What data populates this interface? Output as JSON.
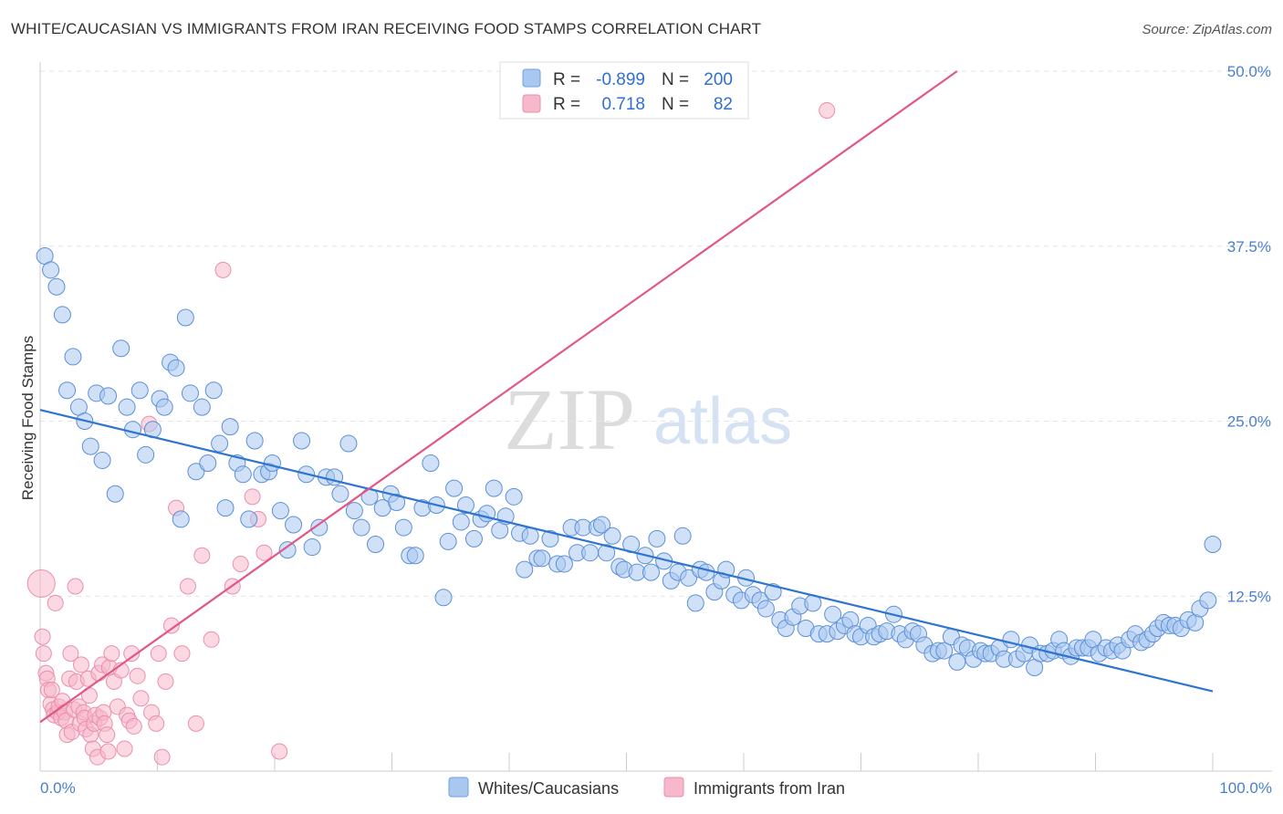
{
  "title": "WHITE/CAUCASIAN VS IMMIGRANTS FROM IRAN RECEIVING FOOD STAMPS CORRELATION CHART",
  "source": "Source: ZipAtlas.com",
  "watermark": {
    "zip": "ZIP",
    "atlas": "atlas"
  },
  "legend": {
    "rows": [
      {
        "r_label": "R =",
        "r_value": "-0.899",
        "n_label": "N =",
        "n_value": "200",
        "color": "#a9c8f0",
        "stroke": "#6f9fe0"
      },
      {
        "r_label": "R =",
        "r_value": "0.718",
        "n_label": "N =",
        "n_value": "82",
        "color": "#f7b8cb",
        "stroke": "#ea8fae"
      }
    ]
  },
  "chart_data": {
    "type": "scatter",
    "ylabel": "Receiving Food Stamps",
    "xlim": [
      0,
      100
    ],
    "ylim": [
      0,
      50
    ],
    "x_tick_labels": [
      "0.0%",
      "100.0%"
    ],
    "y_ticks": [
      12.5,
      25.0,
      37.5,
      50.0
    ],
    "y_tick_labels": [
      "12.5%",
      "25.0%",
      "37.5%",
      "50.0%"
    ],
    "grid": true,
    "series": [
      {
        "name": "Whites/Caucasians",
        "color": "#a9c8f0",
        "stroke": "#5b8fd8",
        "trend": {
          "x": [
            0,
            100
          ],
          "y": [
            25.8,
            5.7
          ],
          "color": "#2e74d0"
        },
        "points": [
          [
            0.4,
            36.8
          ],
          [
            0.9,
            35.8
          ],
          [
            1.4,
            34.6
          ],
          [
            1.9,
            32.6
          ],
          [
            2.3,
            27.2
          ],
          [
            2.8,
            29.6
          ],
          [
            3.3,
            26.0
          ],
          [
            3.8,
            25.0
          ],
          [
            4.3,
            23.2
          ],
          [
            4.8,
            27.0
          ],
          [
            5.3,
            22.2
          ],
          [
            5.8,
            26.8
          ],
          [
            6.4,
            19.8
          ],
          [
            6.9,
            30.2
          ],
          [
            7.4,
            26.0
          ],
          [
            7.9,
            24.4
          ],
          [
            8.5,
            27.2
          ],
          [
            9.0,
            22.6
          ],
          [
            9.6,
            24.4
          ],
          [
            10.2,
            26.6
          ],
          [
            10.6,
            26.0
          ],
          [
            11.1,
            29.2
          ],
          [
            11.6,
            28.8
          ],
          [
            12.0,
            18.0
          ],
          [
            12.4,
            32.4
          ],
          [
            12.8,
            27.0
          ],
          [
            13.3,
            21.4
          ],
          [
            13.8,
            26.0
          ],
          [
            14.3,
            22.0
          ],
          [
            14.8,
            27.2
          ],
          [
            15.3,
            23.4
          ],
          [
            15.8,
            18.8
          ],
          [
            16.2,
            24.6
          ],
          [
            16.8,
            22.0
          ],
          [
            17.3,
            21.2
          ],
          [
            17.8,
            18.0
          ],
          [
            18.3,
            23.6
          ],
          [
            18.9,
            21.2
          ],
          [
            19.5,
            21.4
          ],
          [
            19.8,
            22.0
          ],
          [
            20.5,
            18.6
          ],
          [
            21.1,
            15.8
          ],
          [
            21.6,
            17.6
          ],
          [
            22.3,
            23.6
          ],
          [
            22.7,
            21.2
          ],
          [
            23.2,
            16.0
          ],
          [
            23.8,
            17.4
          ],
          [
            24.4,
            21.0
          ],
          [
            25.1,
            21.0
          ],
          [
            25.6,
            19.8
          ],
          [
            26.3,
            23.4
          ],
          [
            26.8,
            18.6
          ],
          [
            27.4,
            17.4
          ],
          [
            28.1,
            19.6
          ],
          [
            28.6,
            16.2
          ],
          [
            29.2,
            18.8
          ],
          [
            29.9,
            19.8
          ],
          [
            30.4,
            19.2
          ],
          [
            31.0,
            17.4
          ],
          [
            31.5,
            15.4
          ],
          [
            32.0,
            15.4
          ],
          [
            32.6,
            18.8
          ],
          [
            33.3,
            22.0
          ],
          [
            33.8,
            19.0
          ],
          [
            34.4,
            12.4
          ],
          [
            34.8,
            16.4
          ],
          [
            35.3,
            20.2
          ],
          [
            35.9,
            17.8
          ],
          [
            36.3,
            19.0
          ],
          [
            37.0,
            16.6
          ],
          [
            37.6,
            18.0
          ],
          [
            38.1,
            18.4
          ],
          [
            38.7,
            20.2
          ],
          [
            39.2,
            17.2
          ],
          [
            39.7,
            18.2
          ],
          [
            40.4,
            19.6
          ],
          [
            40.9,
            17.0
          ],
          [
            41.3,
            14.4
          ],
          [
            41.8,
            16.8
          ],
          [
            42.4,
            15.2
          ],
          [
            42.8,
            15.2
          ],
          [
            43.5,
            16.6
          ],
          [
            44.1,
            14.8
          ],
          [
            44.7,
            14.8
          ],
          [
            45.3,
            17.4
          ],
          [
            45.8,
            15.6
          ],
          [
            46.3,
            17.4
          ],
          [
            46.9,
            15.6
          ],
          [
            47.5,
            17.4
          ],
          [
            47.9,
            17.6
          ],
          [
            48.3,
            15.6
          ],
          [
            48.8,
            16.8
          ],
          [
            49.4,
            14.6
          ],
          [
            49.8,
            14.4
          ],
          [
            50.4,
            16.2
          ],
          [
            50.9,
            14.2
          ],
          [
            51.6,
            15.4
          ],
          [
            52.1,
            14.2
          ],
          [
            52.6,
            16.6
          ],
          [
            53.2,
            15.0
          ],
          [
            53.8,
            13.6
          ],
          [
            54.4,
            14.2
          ],
          [
            54.8,
            16.8
          ],
          [
            55.3,
            13.8
          ],
          [
            55.9,
            12.0
          ],
          [
            56.3,
            14.4
          ],
          [
            56.8,
            14.2
          ],
          [
            57.5,
            12.8
          ],
          [
            58.1,
            13.6
          ],
          [
            58.5,
            14.4
          ],
          [
            59.2,
            12.6
          ],
          [
            59.8,
            12.2
          ],
          [
            60.2,
            13.8
          ],
          [
            60.8,
            12.6
          ],
          [
            61.4,
            12.2
          ],
          [
            61.9,
            11.6
          ],
          [
            62.5,
            12.8
          ],
          [
            63.1,
            10.8
          ],
          [
            63.6,
            10.2
          ],
          [
            64.2,
            11.0
          ],
          [
            64.8,
            11.8
          ],
          [
            65.3,
            10.2
          ],
          [
            65.9,
            12.0
          ],
          [
            66.4,
            9.8
          ],
          [
            67.1,
            9.8
          ],
          [
            67.6,
            11.2
          ],
          [
            68.0,
            10.0
          ],
          [
            68.6,
            10.4
          ],
          [
            69.1,
            10.8
          ],
          [
            69.5,
            9.8
          ],
          [
            70.0,
            9.6
          ],
          [
            70.6,
            10.4
          ],
          [
            71.1,
            9.6
          ],
          [
            71.6,
            9.8
          ],
          [
            72.2,
            10.0
          ],
          [
            72.8,
            11.2
          ],
          [
            73.3,
            9.8
          ],
          [
            73.8,
            9.4
          ],
          [
            74.4,
            10.0
          ],
          [
            74.9,
            9.8
          ],
          [
            75.4,
            9.0
          ],
          [
            76.1,
            8.4
          ],
          [
            76.6,
            8.6
          ],
          [
            77.1,
            8.6
          ],
          [
            77.7,
            9.6
          ],
          [
            78.2,
            7.8
          ],
          [
            78.6,
            9.0
          ],
          [
            79.1,
            8.8
          ],
          [
            79.6,
            8.0
          ],
          [
            80.2,
            8.6
          ],
          [
            80.6,
            8.4
          ],
          [
            81.1,
            8.4
          ],
          [
            81.8,
            8.8
          ],
          [
            82.2,
            8.0
          ],
          [
            82.8,
            9.4
          ],
          [
            83.3,
            8.0
          ],
          [
            83.9,
            8.4
          ],
          [
            84.4,
            9.0
          ],
          [
            84.8,
            7.4
          ],
          [
            85.3,
            8.4
          ],
          [
            85.9,
            8.4
          ],
          [
            86.4,
            8.6
          ],
          [
            86.9,
            9.4
          ],
          [
            87.3,
            8.6
          ],
          [
            87.9,
            8.2
          ],
          [
            88.4,
            8.8
          ],
          [
            88.9,
            8.8
          ],
          [
            89.4,
            8.8
          ],
          [
            89.8,
            9.4
          ],
          [
            90.3,
            8.4
          ],
          [
            90.9,
            8.8
          ],
          [
            91.4,
            8.6
          ],
          [
            91.9,
            9.0
          ],
          [
            92.3,
            8.6
          ],
          [
            92.9,
            9.4
          ],
          [
            93.4,
            9.8
          ],
          [
            93.9,
            9.2
          ],
          [
            94.4,
            9.4
          ],
          [
            94.9,
            9.8
          ],
          [
            95.3,
            10.2
          ],
          [
            95.8,
            10.6
          ],
          [
            96.3,
            10.4
          ],
          [
            96.8,
            10.4
          ],
          [
            97.3,
            10.2
          ],
          [
            97.9,
            10.8
          ],
          [
            98.5,
            10.6
          ],
          [
            98.9,
            11.6
          ],
          [
            99.6,
            12.2
          ],
          [
            100.0,
            16.2
          ]
        ]
      },
      {
        "name": "Immigrants from Iran",
        "color": "#f7b8cb",
        "stroke": "#ea8fae",
        "trend": {
          "x": [
            0,
            78.2
          ],
          "y": [
            3.5,
            50.0
          ],
          "color": "#e25787"
        },
        "points": [
          [
            0.1,
            13.4
          ],
          [
            0.2,
            9.6
          ],
          [
            0.3,
            8.4
          ],
          [
            0.5,
            7.0
          ],
          [
            0.6,
            6.6
          ],
          [
            0.7,
            5.8
          ],
          [
            0.9,
            4.8
          ],
          [
            1.0,
            5.8
          ],
          [
            1.1,
            4.4
          ],
          [
            1.2,
            4.0
          ],
          [
            1.3,
            12.0
          ],
          [
            1.5,
            4.2
          ],
          [
            1.6,
            4.6
          ],
          [
            1.8,
            3.8
          ],
          [
            1.9,
            5.0
          ],
          [
            2.1,
            4.2
          ],
          [
            2.2,
            3.6
          ],
          [
            2.3,
            2.6
          ],
          [
            2.5,
            6.6
          ],
          [
            2.6,
            8.4
          ],
          [
            2.7,
            2.8
          ],
          [
            2.9,
            4.4
          ],
          [
            3.0,
            13.2
          ],
          [
            3.1,
            6.4
          ],
          [
            3.3,
            4.6
          ],
          [
            3.4,
            3.4
          ],
          [
            3.5,
            7.6
          ],
          [
            3.7,
            4.2
          ],
          [
            3.8,
            3.8
          ],
          [
            3.9,
            3.0
          ],
          [
            4.1,
            6.6
          ],
          [
            4.2,
            5.4
          ],
          [
            4.3,
            2.6
          ],
          [
            4.5,
            1.6
          ],
          [
            4.6,
            3.4
          ],
          [
            4.7,
            4.0
          ],
          [
            4.9,
            1.0
          ],
          [
            5.0,
            7.0
          ],
          [
            5.1,
            3.8
          ],
          [
            5.3,
            7.6
          ],
          [
            5.4,
            4.2
          ],
          [
            5.5,
            3.4
          ],
          [
            5.7,
            2.6
          ],
          [
            5.8,
            1.4
          ],
          [
            5.9,
            7.4
          ],
          [
            6.1,
            8.4
          ],
          [
            6.3,
            6.4
          ],
          [
            6.6,
            4.6
          ],
          [
            6.9,
            7.2
          ],
          [
            7.2,
            1.6
          ],
          [
            7.4,
            4.0
          ],
          [
            7.6,
            3.6
          ],
          [
            7.8,
            8.4
          ],
          [
            8.0,
            3.2
          ],
          [
            8.3,
            6.8
          ],
          [
            8.6,
            5.2
          ],
          [
            9.3,
            24.8
          ],
          [
            9.5,
            4.2
          ],
          [
            9.9,
            3.4
          ],
          [
            10.1,
            8.4
          ],
          [
            10.4,
            1.0
          ],
          [
            10.7,
            6.4
          ],
          [
            11.2,
            10.4
          ],
          [
            11.6,
            18.8
          ],
          [
            12.1,
            8.4
          ],
          [
            12.6,
            13.2
          ],
          [
            13.3,
            3.4
          ],
          [
            13.8,
            15.4
          ],
          [
            14.6,
            9.4
          ],
          [
            15.6,
            35.8
          ],
          [
            16.4,
            13.2
          ],
          [
            17.1,
            14.8
          ],
          [
            18.1,
            19.6
          ],
          [
            18.6,
            18.0
          ],
          [
            19.1,
            15.6
          ],
          [
            20.4,
            1.4
          ],
          [
            67.1,
            47.2
          ]
        ]
      }
    ]
  }
}
